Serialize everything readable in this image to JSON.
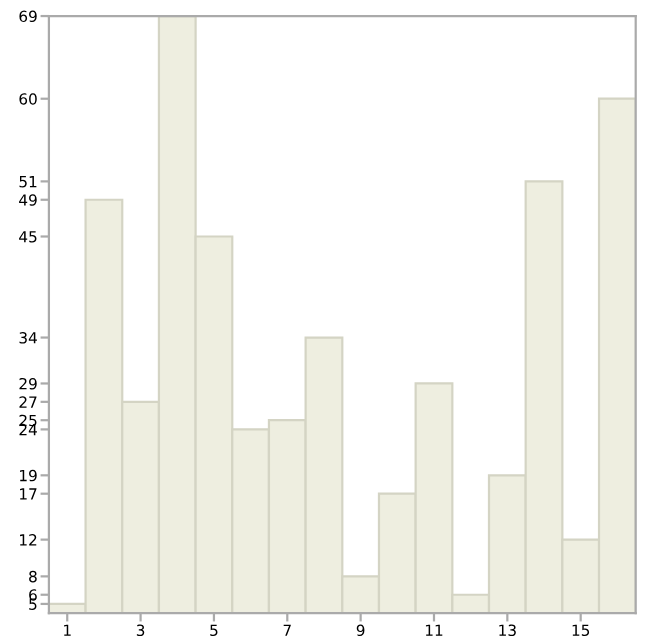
{
  "chart_data": {
    "type": "bar",
    "x": [
      1,
      2,
      3,
      4,
      5,
      6,
      7,
      8,
      9,
      10,
      11,
      12,
      13,
      14,
      15,
      16
    ],
    "values": [
      5,
      49,
      27,
      69,
      45,
      24,
      25,
      34,
      8,
      17,
      29,
      6,
      19,
      51,
      12,
      60
    ],
    "color": "#eeeee0",
    "xlim": [
      0.5,
      16.5
    ],
    "xticks": [
      1,
      3,
      5,
      7,
      9,
      11,
      13,
      15
    ],
    "ylim": [
      4,
      69
    ],
    "yticks": [
      5,
      6,
      8,
      12,
      17,
      19,
      24,
      25,
      27,
      29,
      34,
      45,
      49,
      51,
      60,
      69
    ],
    "grid": false
  }
}
